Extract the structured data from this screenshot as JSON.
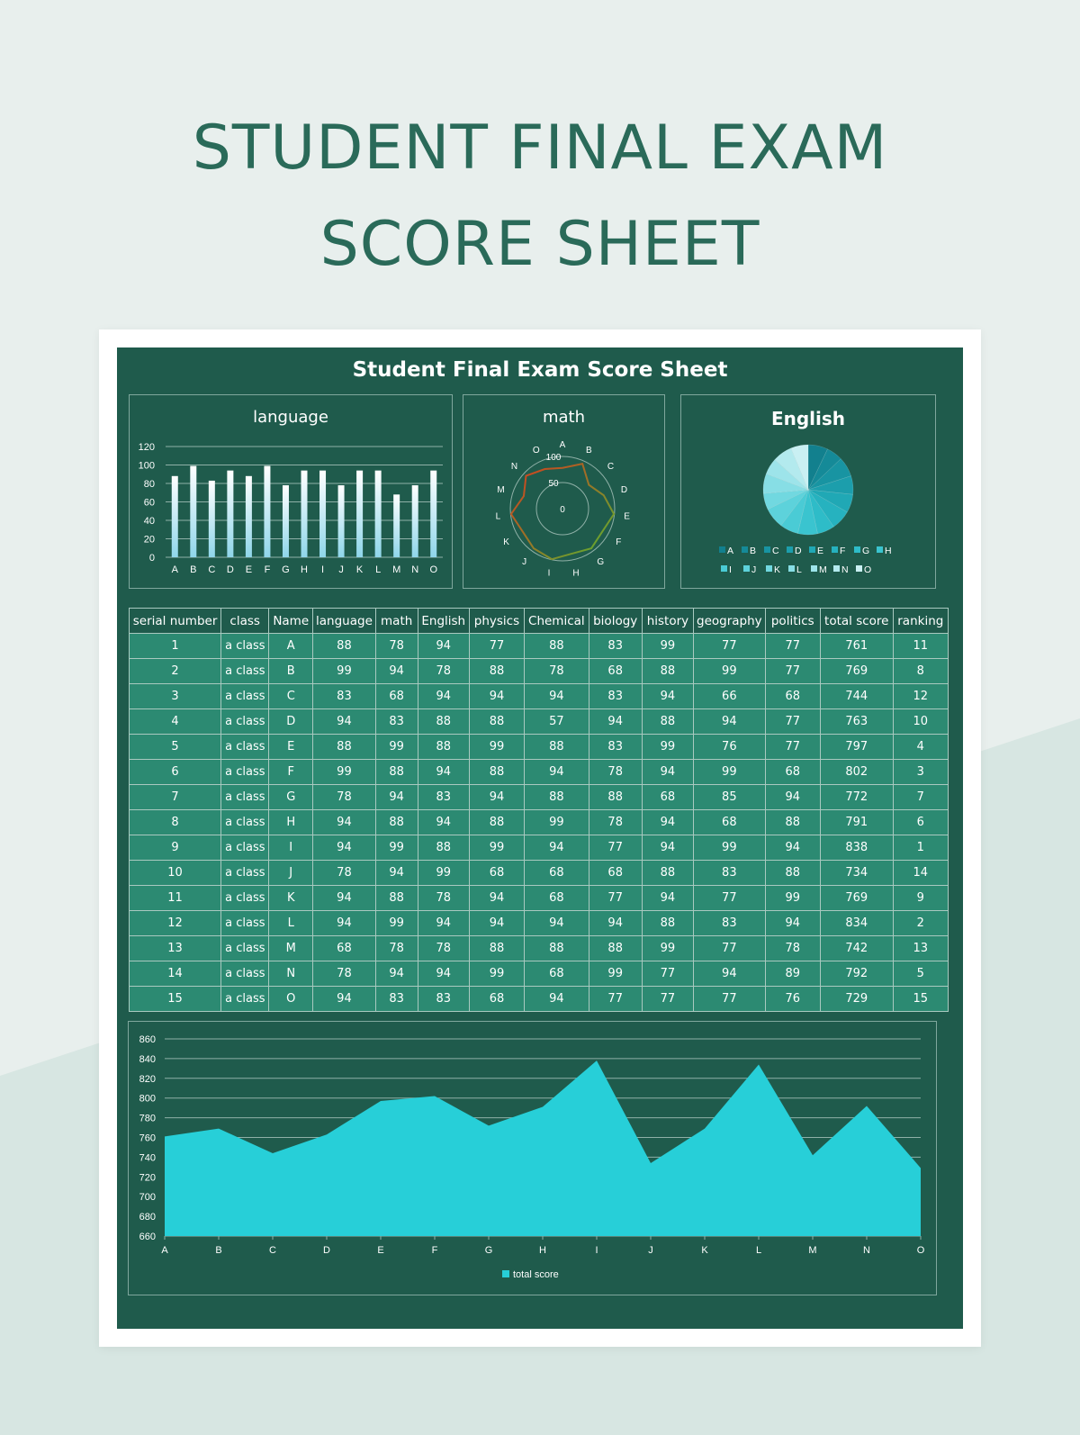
{
  "page": {
    "title_line1": "STUDENT FINAL EXAM",
    "title_line2": "SCORE SHEET"
  },
  "sheet": {
    "title": "Student Final Exam Score Sheet",
    "table": {
      "headers": [
        "serial number",
        "class",
        "Name",
        "language",
        "math",
        "English",
        "physics",
        "Chemical",
        "biology",
        "history",
        "geography",
        "politics",
        "total score",
        "ranking"
      ],
      "rows": [
        [
          "1",
          "a class",
          "A",
          "88",
          "78",
          "94",
          "77",
          "88",
          "83",
          "99",
          "77",
          "77",
          "761",
          "11"
        ],
        [
          "2",
          "a class",
          "B",
          "99",
          "94",
          "78",
          "88",
          "78",
          "68",
          "88",
          "99",
          "77",
          "769",
          "8"
        ],
        [
          "3",
          "a class",
          "C",
          "83",
          "68",
          "94",
          "94",
          "94",
          "83",
          "94",
          "66",
          "68",
          "744",
          "12"
        ],
        [
          "4",
          "a class",
          "D",
          "94",
          "83",
          "88",
          "88",
          "57",
          "94",
          "88",
          "94",
          "77",
          "763",
          "10"
        ],
        [
          "5",
          "a class",
          "E",
          "88",
          "99",
          "88",
          "99",
          "88",
          "83",
          "99",
          "76",
          "77",
          "797",
          "4"
        ],
        [
          "6",
          "a class",
          "F",
          "99",
          "88",
          "94",
          "88",
          "94",
          "78",
          "94",
          "99",
          "68",
          "802",
          "3"
        ],
        [
          "7",
          "a class",
          "G",
          "78",
          "94",
          "83",
          "94",
          "88",
          "88",
          "68",
          "85",
          "94",
          "772",
          "7"
        ],
        [
          "8",
          "a class",
          "H",
          "94",
          "88",
          "94",
          "88",
          "99",
          "78",
          "94",
          "68",
          "88",
          "791",
          "6"
        ],
        [
          "9",
          "a class",
          "I",
          "94",
          "99",
          "88",
          "99",
          "94",
          "77",
          "94",
          "99",
          "94",
          "838",
          "1"
        ],
        [
          "10",
          "a class",
          "J",
          "78",
          "94",
          "99",
          "68",
          "68",
          "68",
          "88",
          "83",
          "88",
          "734",
          "14"
        ],
        [
          "11",
          "a class",
          "K",
          "94",
          "88",
          "78",
          "94",
          "68",
          "77",
          "94",
          "77",
          "99",
          "769",
          "9"
        ],
        [
          "12",
          "a class",
          "L",
          "94",
          "99",
          "94",
          "94",
          "94",
          "94",
          "88",
          "83",
          "94",
          "834",
          "2"
        ],
        [
          "13",
          "a class",
          "M",
          "68",
          "78",
          "78",
          "88",
          "88",
          "88",
          "99",
          "77",
          "78",
          "742",
          "13"
        ],
        [
          "14",
          "a class",
          "N",
          "78",
          "94",
          "94",
          "99",
          "68",
          "99",
          "77",
          "94",
          "89",
          "792",
          "5"
        ],
        [
          "15",
          "a class",
          "O",
          "94",
          "83",
          "83",
          "68",
          "94",
          "77",
          "77",
          "77",
          "76",
          "729",
          "15"
        ]
      ]
    }
  },
  "chart_data": [
    {
      "type": "bar",
      "title": "language",
      "categories": [
        "A",
        "B",
        "C",
        "D",
        "E",
        "F",
        "G",
        "H",
        "I",
        "J",
        "K",
        "L",
        "M",
        "N",
        "O"
      ],
      "values": [
        88,
        99,
        83,
        94,
        88,
        99,
        78,
        94,
        94,
        78,
        94,
        94,
        68,
        78,
        94
      ],
      "ylim": [
        0,
        120
      ],
      "yticks": [
        "0",
        "20",
        "40",
        "60",
        "80",
        "100",
        "120"
      ],
      "grid": true,
      "colors": {
        "bar_top": "#ffffff",
        "bar_bottom": "#8fd6ea"
      }
    },
    {
      "type": "radar",
      "title": "math",
      "categories": [
        "A",
        "B",
        "C",
        "D",
        "E",
        "F",
        "G",
        "H",
        "I",
        "J",
        "K",
        "L",
        "M",
        "N",
        "O"
      ],
      "values": [
        78,
        94,
        68,
        83,
        99,
        88,
        94,
        88,
        99,
        94,
        88,
        99,
        78,
        94,
        83
      ],
      "rlim": [
        0,
        100
      ],
      "rticks": [
        "0",
        "50",
        "100"
      ],
      "colors": {
        "line_start": "#d83a1e",
        "line_end": "#56b431"
      }
    },
    {
      "type": "pie",
      "title": "English",
      "categories": [
        "A",
        "B",
        "C",
        "D",
        "E",
        "F",
        "G",
        "H",
        "I",
        "J",
        "K",
        "L",
        "M",
        "N",
        "O"
      ],
      "values": [
        94,
        78,
        94,
        88,
        88,
        94,
        83,
        94,
        88,
        99,
        78,
        94,
        78,
        94,
        83
      ],
      "legend_position": "bottom",
      "colors": [
        "#12808e",
        "#158a98",
        "#1894a2",
        "#1c9eac",
        "#20a8b5",
        "#26b2bf",
        "#2ebcc8",
        "#3ac4cf",
        "#4acbd5",
        "#5dd2db",
        "#71d8e0",
        "#87dee5",
        "#9de4ea",
        "#b3eaee",
        "#c9f0f3"
      ]
    },
    {
      "type": "area",
      "categories": [
        "A",
        "B",
        "C",
        "D",
        "E",
        "F",
        "G",
        "H",
        "I",
        "J",
        "K",
        "L",
        "M",
        "N",
        "O"
      ],
      "series": [
        {
          "name": "total score",
          "values": [
            761,
            769,
            744,
            763,
            797,
            802,
            772,
            791,
            838,
            734,
            769,
            834,
            742,
            792,
            729
          ]
        }
      ],
      "ylim": [
        660,
        860
      ],
      "yticks": [
        "660",
        "680",
        "700",
        "720",
        "740",
        "760",
        "780",
        "800",
        "820",
        "840",
        "860"
      ],
      "legend_position": "bottom",
      "grid": true,
      "colors": {
        "fill": "#27cfd8"
      }
    }
  ]
}
